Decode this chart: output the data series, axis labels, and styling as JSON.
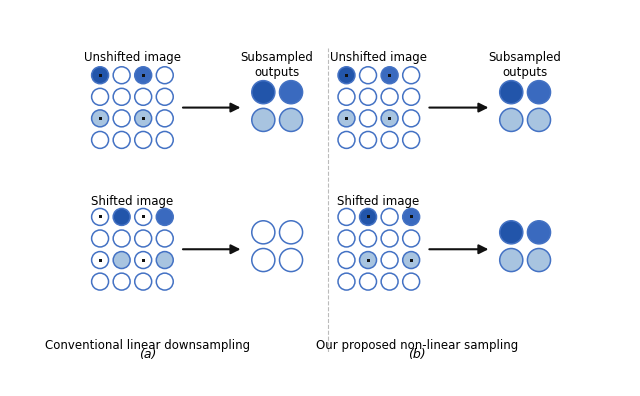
{
  "colors": {
    "dark_blue1": "#2255aa",
    "dark_blue2": "#3a6abf",
    "light_blue": "#a8c4e0",
    "white": "#ffffff",
    "outline": "#4472c4",
    "black": "#111111",
    "bg": "#ffffff"
  },
  "label_unshifted": "Unshifted image",
  "label_shifted": "Shifted image",
  "label_subsampled": "Subsampled\noutputs",
  "title_a": "Conventional linear downsampling",
  "title_b": "Our proposed non-linear sampling",
  "panel_a": "(a)",
  "panel_b": "(b)"
}
